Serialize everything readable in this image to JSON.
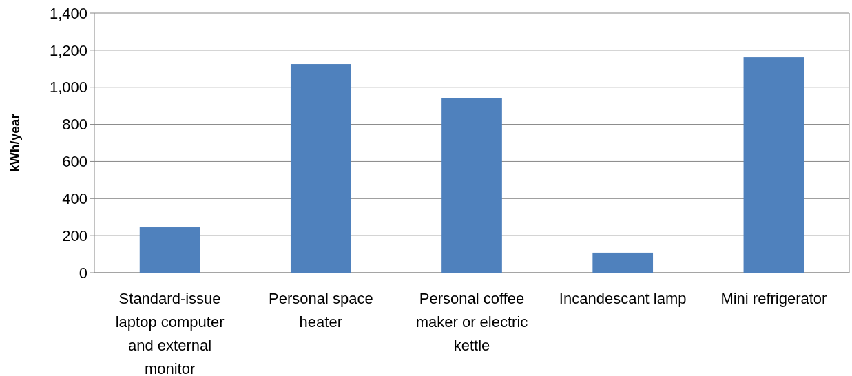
{
  "chart_data": {
    "type": "bar",
    "ylabel": "kWh/year",
    "categories": [
      "Standard-issue laptop computer and external monitor",
      "Personal space heater",
      "Personal coffee maker or electric kettle",
      "Incandescant lamp",
      "Mini refrigerator"
    ],
    "values": [
      245,
      1125,
      943,
      108,
      1162
    ],
    "color": "#4f81bd",
    "ylim": [
      0,
      1400
    ],
    "yticks": [
      {
        "value": 0,
        "label": "0"
      },
      {
        "value": 200,
        "label": "200"
      },
      {
        "value": 400,
        "label": "400"
      },
      {
        "value": 600,
        "label": "600"
      },
      {
        "value": 800,
        "label": "800"
      },
      {
        "value": 1000,
        "label": "1,000"
      },
      {
        "value": 1200,
        "label": "1,200"
      },
      {
        "value": 1400,
        "label": "1,400"
      }
    ],
    "grid": "y"
  }
}
